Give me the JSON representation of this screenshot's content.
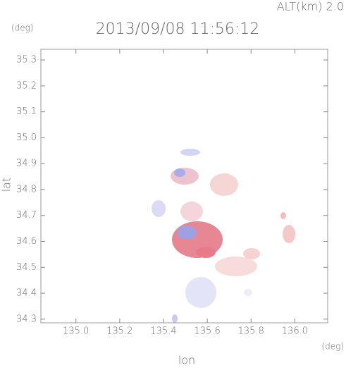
{
  "chart_data": {
    "type": "radar-map",
    "title": "2013/09/08 11:56:12",
    "altitude_label": "ALT(km) 2.0",
    "y_unit": "(deg)",
    "x_unit": "(deg)",
    "xlabel": "lon",
    "ylabel": "lat",
    "xlim": [
      134.84,
      136.15
    ],
    "ylim": [
      34.286,
      35.341
    ],
    "xticks": [
      {
        "value": 135,
        "label": "135.0"
      },
      135.2,
      135.4,
      135.6,
      135.8,
      {
        "value": 136,
        "label": "136.0"
      }
    ],
    "yticks": [
      34.3,
      34.4,
      34.5,
      34.6,
      34.7,
      34.8,
      34.9,
      {
        "value": 35,
        "label": "35.0"
      },
      35.1,
      35.2,
      35.3
    ]
  }
}
